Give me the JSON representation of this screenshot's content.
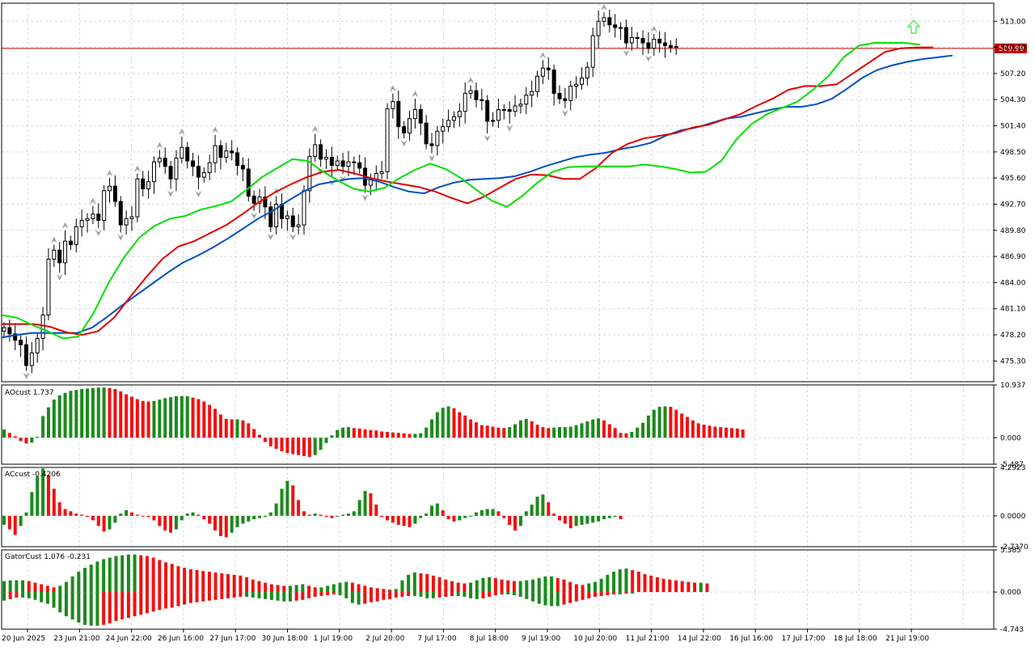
{
  "chart_data": [
    {
      "type": "candlestick",
      "panel": "main",
      "ylim": [
        473.0,
        515.0
      ],
      "yticks": [
        "513.00",
        "510.10",
        "507.20",
        "504.30",
        "501.40",
        "498.50",
        "495.60",
        "492.70",
        "489.80",
        "486.90",
        "484.00",
        "481.10",
        "478.20",
        "475.30"
      ],
      "yticks_values": [
        513.0,
        510.1,
        507.2,
        504.3,
        501.4,
        498.5,
        495.6,
        492.7,
        489.8,
        486.9,
        484.0,
        481.1,
        478.2,
        475.3
      ],
      "current_price": "509.99",
      "current_price_value": 509.99,
      "candles_close": [
        479.0,
        478.3,
        477.6,
        477.1,
        474.8,
        476.2,
        477.8,
        480.4,
        486.6,
        487.6,
        486.2,
        488.6,
        488.2,
        490.2,
        490.9,
        491.1,
        491.6,
        490.9,
        494.2,
        494.7,
        493.0,
        490.4,
        491.1,
        491.3,
        495.5,
        494.4,
        495.2,
        497.4,
        497.8,
        496.9,
        495.5,
        497.8,
        499.0,
        497.5,
        496.9,
        495.7,
        496.2,
        497.3,
        499.2,
        497.9,
        498.6,
        498.4,
        497.0,
        496.6,
        493.6,
        492.8,
        493.5,
        492.4,
        490.2,
        492.7,
        491.1,
        491.4,
        490.2,
        490.4,
        494.2,
        498.0,
        499.3,
        497.7,
        497.9,
        497.0,
        497.5,
        496.9,
        497.4,
        497.3,
        496.7,
        494.8,
        495.5,
        496.1,
        496.3,
        503.3,
        504.1,
        501.3,
        500.6,
        502.2,
        503.2,
        501.7,
        499.4,
        499.2,
        500.8,
        501.3,
        502.0,
        502.4,
        503.0,
        505.0,
        505.3,
        504.3,
        504.2,
        501.9,
        502.0,
        503.2,
        503.2,
        503.0,
        503.6,
        503.8,
        504.8,
        505.2,
        506.9,
        507.8,
        507.6,
        505.0,
        504.4,
        504.2,
        505.8,
        506.0,
        506.7,
        507.9,
        511.4,
        513.0,
        513.4,
        512.6,
        512.3,
        512.3,
        510.6,
        511.2,
        511.1,
        510.6,
        510.0,
        511.0,
        510.6,
        510.3,
        510.1,
        510.2
      ],
      "green_line": [
        480.4,
        480.1,
        479.3,
        478.6,
        477.8,
        478.0,
        480.6,
        484.0,
        486.8,
        489.0,
        490.3,
        491.1,
        491.4,
        492.1,
        492.5,
        493.0,
        494.3,
        495.7,
        496.7,
        497.7,
        497.5,
        496.3,
        495.3,
        494.4,
        494.1,
        494.5,
        495.6,
        496.5,
        497.2,
        496.6,
        495.6,
        494.3,
        493.1,
        492.4,
        493.6,
        495.1,
        496.3,
        496.8,
        496.9,
        496.9,
        496.9,
        496.9,
        497.1,
        496.9,
        496.6,
        496.2,
        496.3,
        497.5,
        499.9,
        501.6,
        502.7,
        503.4,
        504.1,
        505.4,
        506.9,
        509.0,
        510.3,
        510.6,
        510.6,
        510.6,
        510.4
      ],
      "red_line": [
        479.4,
        479.4,
        479.4,
        479.1,
        478.5,
        478.2,
        478.6,
        480.1,
        482.4,
        484.6,
        486.6,
        488.0,
        488.6,
        489.5,
        490.4,
        491.6,
        492.9,
        494.0,
        494.9,
        495.7,
        496.3,
        496.5,
        496.1,
        495.6,
        495.2,
        494.9,
        494.6,
        494.1,
        493.4,
        492.8,
        493.5,
        494.5,
        495.5,
        496.0,
        495.9,
        495.5,
        495.5,
        496.7,
        498.4,
        499.4,
        500.0,
        500.3,
        500.6,
        501.2,
        501.5,
        502.1,
        502.7,
        503.6,
        504.4,
        505.4,
        505.8,
        505.8,
        506.0,
        507.2,
        508.4,
        509.6,
        510.0,
        510.1,
        510.1
      ],
      "blue_line": [
        477.9,
        478.2,
        478.4,
        478.4,
        478.4,
        478.4,
        479.0,
        480.2,
        481.5,
        482.7,
        483.9,
        485.1,
        486.2,
        487.0,
        487.9,
        488.9,
        490.0,
        491.1,
        492.0,
        493.1,
        494.1,
        494.9,
        495.2,
        495.5,
        495.6,
        495.2,
        494.6,
        494.1,
        493.9,
        494.6,
        495.1,
        495.4,
        495.5,
        495.6,
        495.8,
        496.3,
        496.9,
        497.4,
        497.9,
        498.2,
        498.4,
        498.8,
        499.1,
        499.5,
        500.3,
        500.9,
        501.2,
        501.7,
        502.2,
        502.4,
        502.8,
        503.2,
        503.5,
        503.5,
        503.8,
        504.4,
        505.5,
        506.7,
        507.6,
        508.1,
        508.5,
        508.8,
        509.0,
        509.2
      ]
    },
    {
      "type": "histogram",
      "panel": "ao",
      "label": "AOcust 1.737",
      "ylim": [
        -5.487,
        10.937
      ],
      "yticks": [
        "10.937",
        "0.000",
        "-5.487"
      ],
      "yticks_values": [
        10.937,
        0.0,
        -5.487
      ],
      "values": [
        1.7,
        1.0,
        0.3,
        -0.7,
        -1.2,
        -1.0,
        0.2,
        4.5,
        6.3,
        7.9,
        8.8,
        9.3,
        9.7,
        9.9,
        10.1,
        10.2,
        10.3,
        10.4,
        10.4,
        10.3,
        10.1,
        9.6,
        9.0,
        8.5,
        8.0,
        7.6,
        7.5,
        7.6,
        7.9,
        8.2,
        8.4,
        8.6,
        8.6,
        8.6,
        8.3,
        8.0,
        7.5,
        6.8,
        6.0,
        4.8,
        3.9,
        3.8,
        3.8,
        3.6,
        3.0,
        1.8,
        0.6,
        -0.9,
        -1.8,
        -2.3,
        -2.8,
        -3.2,
        -3.4,
        -3.6,
        -3.8,
        -4.0,
        -3.6,
        -2.5,
        -1.1,
        0.5,
        1.6,
        2.1,
        2.2,
        2.0,
        1.9,
        1.7,
        1.6,
        1.5,
        1.3,
        1.2,
        1.1,
        1.0,
        0.9,
        0.8,
        0.8,
        0.9,
        2.1,
        3.8,
        5.3,
        6.2,
        6.5,
        6.1,
        5.3,
        4.6,
        3.8,
        3.2,
        2.6,
        2.5,
        2.3,
        2.1,
        2.0,
        2.2,
        2.8,
        3.6,
        3.9,
        3.4,
        2.7,
        2.2,
        2.0,
        2.1,
        2.2,
        2.2,
        2.3,
        2.6,
        3.0,
        3.4,
        3.8,
        4.0,
        3.6,
        2.8,
        2.0,
        1.0,
        0.9,
        1.2,
        2.1,
        3.1,
        4.6,
        5.8,
        6.4,
        6.5,
        6.4,
        5.8,
        5.0,
        4.3,
        3.6,
        3.0,
        2.7,
        2.5,
        2.3,
        2.2,
        2.1,
        2.0,
        1.9,
        1.7
      ],
      "colors": [
        "red",
        "green"
      ]
    },
    {
      "type": "histogram",
      "panel": "ac",
      "label": "ACcust -0.4206",
      "ylim": [
        -2.737,
        4.2923
      ],
      "yticks": [
        "4.2923",
        "0.0000",
        "-2.7370"
      ],
      "yticks_values": [
        4.2923,
        0.0,
        -2.737
      ],
      "values": [
        -0.8,
        -1.2,
        -1.7,
        -0.9,
        0.3,
        2.1,
        3.5,
        4.2,
        3.6,
        2.4,
        1.2,
        0.6,
        0.4,
        0.2,
        0.1,
        -0.1,
        -0.4,
        -0.9,
        -1.4,
        -1.2,
        -0.6,
        0.2,
        0.5,
        0.3,
        0.1,
        0.0,
        -0.1,
        -0.4,
        -0.9,
        -1.3,
        -1.5,
        -1.2,
        -0.4,
        0.2,
        0.3,
        0.1,
        -0.3,
        -0.7,
        -1.3,
        -1.8,
        -1.9,
        -1.5,
        -1.0,
        -0.7,
        -0.5,
        -0.3,
        -0.2,
        -0.1,
        0.3,
        1.1,
        2.4,
        3.1,
        2.7,
        1.4,
        0.4,
        0.1,
        0.2,
        0.1,
        -0.1,
        -0.2,
        0.0,
        0.1,
        0.2,
        0.4,
        1.4,
        2.2,
        2.0,
        1.0,
        -0.1,
        -0.4,
        -0.6,
        -0.8,
        -0.9,
        -1.0,
        -0.7,
        -0.2,
        0.2,
        0.9,
        1.1,
        0.5,
        -0.3,
        -0.5,
        -0.4,
        -0.2,
        0.0,
        0.3,
        0.5,
        0.6,
        0.6,
        0.4,
        -0.2,
        -0.8,
        -1.3,
        -0.9,
        0.4,
        1.0,
        1.7,
        1.9,
        1.2,
        0.2,
        -0.4,
        -0.7,
        -1.1,
        -0.9,
        -0.8,
        -0.7,
        -0.6,
        -0.5,
        -0.3,
        -0.2,
        -0.1,
        -0.3
      ],
      "colors": [
        "red",
        "green"
      ]
    },
    {
      "type": "histogram",
      "panel": "gator",
      "label": "GatorCust 1.076 -0.231",
      "ylim": [
        -4.743,
        5.385
      ],
      "yticks": [
        "5.385",
        "0.000",
        "-4.743"
      ],
      "yticks_values": [
        5.385,
        0.0,
        -4.743
      ],
      "upper_values": [
        1.4,
        1.5,
        1.5,
        1.5,
        1.4,
        1.2,
        1.0,
        0.8,
        0.6,
        0.8,
        1.3,
        2.0,
        2.6,
        3.1,
        3.5,
        3.9,
        4.2,
        4.4,
        4.6,
        4.7,
        4.8,
        4.8,
        4.7,
        4.6,
        4.4,
        4.1,
        3.8,
        3.6,
        3.3,
        3.1,
        2.9,
        2.8,
        2.7,
        2.6,
        2.5,
        2.4,
        2.3,
        2.2,
        2.1,
        1.9,
        1.6,
        1.4,
        1.2,
        1.0,
        0.9,
        0.8,
        0.8,
        0.9,
        1.0,
        0.8,
        0.6,
        0.6,
        0.8,
        1.0,
        1.2,
        1.3,
        1.2,
        1.0,
        0.8,
        0.6,
        0.5,
        0.4,
        0.3,
        0.4,
        1.5,
        2.2,
        2.5,
        2.4,
        2.3,
        2.1,
        1.9,
        1.6,
        1.4,
        1.2,
        1.1,
        1.2,
        1.5,
        1.8,
        1.9,
        1.8,
        1.6,
        1.5,
        1.4,
        1.4,
        1.5,
        1.6,
        1.8,
        2.0,
        2.0,
        1.8,
        1.6,
        1.3,
        1.0,
        0.9,
        1.1,
        1.3,
        1.7,
        2.2,
        2.6,
        2.9,
        3.0,
        2.8,
        2.6,
        2.3,
        2.1,
        1.9,
        1.7,
        1.6,
        1.5,
        1.4,
        1.3,
        1.2,
        1.2,
        1.1
      ],
      "lower_values": [
        -1.1,
        -0.9,
        -0.7,
        -0.7,
        -0.8,
        -1.0,
        -1.3,
        -1.5,
        -2.0,
        -2.6,
        -3.1,
        -3.5,
        -3.9,
        -4.2,
        -4.3,
        -4.3,
        -4.2,
        -4.0,
        -3.7,
        -3.5,
        -3.3,
        -3.1,
        -2.9,
        -2.7,
        -2.5,
        -2.3,
        -2.1,
        -2.0,
        -1.8,
        -1.6,
        -1.4,
        -1.3,
        -1.2,
        -1.1,
        -1.0,
        -0.9,
        -0.8,
        -0.7,
        -0.6,
        -0.6,
        -0.7,
        -0.8,
        -0.9,
        -1.0,
        -1.1,
        -1.2,
        -1.2,
        -1.1,
        -1.0,
        -0.8,
        -0.6,
        -0.5,
        -0.4,
        -0.3,
        -0.4,
        -0.8,
        -1.4,
        -1.6,
        -1.5,
        -1.3,
        -1.2,
        -1.0,
        -0.9,
        -0.7,
        -0.6,
        -0.5,
        -0.5,
        -0.6,
        -0.8,
        -0.8,
        -0.7,
        -0.6,
        -0.5,
        -0.5,
        -0.6,
        -0.8,
        -0.9,
        -0.8,
        -0.6,
        -0.4,
        -0.3,
        -0.3,
        -0.4,
        -0.6,
        -0.9,
        -1.2,
        -1.5,
        -1.7,
        -1.8,
        -1.8,
        -1.6,
        -1.4,
        -1.2,
        -1.0,
        -0.8,
        -0.6,
        -0.5,
        -0.4,
        -0.3,
        -0.3,
        -0.2,
        -0.2
      ]
    }
  ],
  "x_labels": [
    "20 Jun 2025",
    "23 Jun 21:00",
    "24 Jun 22:00",
    "26 Jun 16:00",
    "27 Jun 17:00",
    "30 Jun 18:00",
    "1 Jul 19:00",
    "2 Jul 20:00",
    "7 Jul 17:00",
    "8 Jul 18:00",
    "9 Jul 19:00",
    "10 Jul 20:00",
    "11 Jul 21:00",
    "14 Jul 22:00",
    "16 Jul 16:00",
    "17 Jul 17:00",
    "18 Jul 18:00",
    "21 Jul 19:00"
  ],
  "colors": {
    "green_line": "#00e000",
    "red_line": "#e00000",
    "blue_line": "#0050c0",
    "bar_up": "#1a8a1a",
    "bar_down": "#f01010",
    "price_line": "#c00000",
    "price_tag_bg": "#c00000",
    "grid": "#d8d8d8",
    "fractal": "#a0a0a8",
    "buy_arrow": "#40e040"
  }
}
